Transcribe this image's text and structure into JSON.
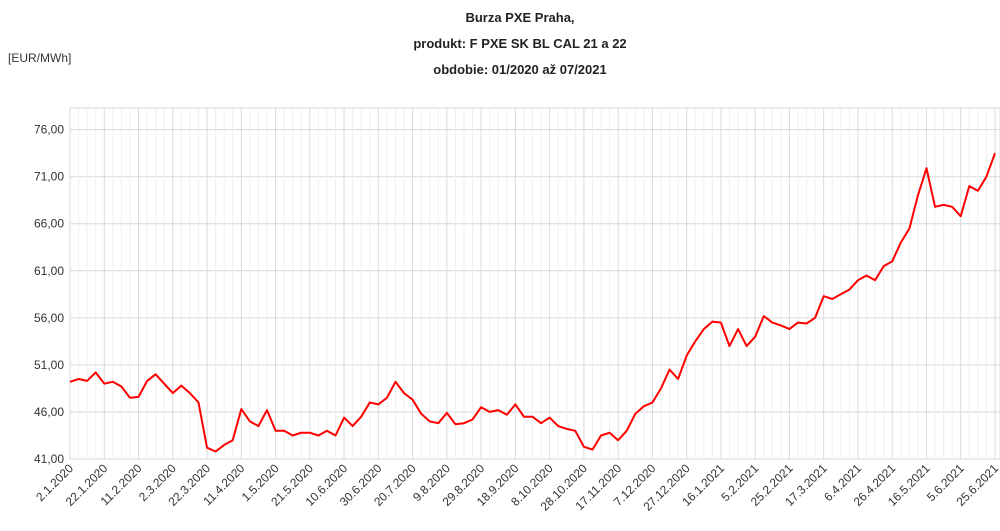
{
  "chart_data": {
    "type": "line",
    "title_lines": [
      "Burza PXE Praha,",
      "produkt: F PXE SK BL CAL 21 a 22",
      "obdobie: 01/2020 až 07/2021"
    ],
    "y_axis_label": "[EUR/MWh]",
    "categories": [
      "2.1.2020",
      null,
      null,
      null,
      "22.1.2020",
      null,
      null,
      null,
      "11.2.2020",
      null,
      null,
      null,
      "2.3.2020",
      null,
      null,
      null,
      "22.3.2020",
      null,
      null,
      null,
      "11.4.2020",
      null,
      null,
      null,
      "1.5.2020",
      null,
      null,
      null,
      "21.5.2020",
      null,
      null,
      null,
      "10.6.2020",
      null,
      null,
      null,
      "30.6.2020",
      null,
      null,
      null,
      "20.7.2020",
      null,
      null,
      null,
      "9.8.2020",
      null,
      null,
      null,
      "29.8.2020",
      null,
      null,
      null,
      "18.9.2020",
      null,
      null,
      null,
      "8.10.2020",
      null,
      null,
      null,
      "28.10.2020",
      null,
      null,
      null,
      "17.11.2020",
      null,
      null,
      null,
      "7.12.2020",
      null,
      null,
      null,
      "27.12.2020",
      null,
      null,
      null,
      "16.1.2021",
      null,
      null,
      null,
      "5.2.2021",
      null,
      null,
      null,
      "25.2.2021",
      null,
      null,
      null,
      "17.3.2021",
      null,
      null,
      null,
      "6.4.2021",
      null,
      null,
      null,
      "26.4.2021",
      null,
      null,
      null,
      "16.5.2021",
      null,
      null,
      null,
      "5.6.2021",
      null,
      null,
      null,
      "25.6.2021"
    ],
    "series": [
      {
        "name": "F PXE SK BL CAL 21 a 22",
        "color": "#ff0000",
        "values": [
          49.2,
          49.5,
          49.3,
          50.2,
          49.0,
          49.2,
          48.7,
          47.5,
          47.6,
          49.3,
          50.0,
          49.0,
          48.0,
          48.8,
          48.0,
          47.0,
          42.2,
          41.8,
          42.5,
          43.0,
          46.3,
          45.0,
          44.5,
          46.2,
          44.0,
          44.0,
          43.5,
          43.8,
          43.8,
          43.5,
          44.0,
          43.5,
          45.4,
          44.5,
          45.5,
          47.0,
          46.8,
          47.5,
          49.2,
          48.0,
          47.3,
          45.8,
          45.0,
          44.8,
          45.9,
          44.7,
          44.8,
          45.2,
          46.5,
          46.0,
          46.2,
          45.7,
          46.8,
          45.5,
          45.5,
          44.8,
          45.4,
          44.5,
          44.2,
          44.0,
          42.3,
          42.0,
          43.5,
          43.8,
          43.0,
          44.0,
          45.8,
          46.6,
          47.0,
          48.5,
          50.5,
          49.5,
          52.0,
          53.5,
          54.8,
          55.6,
          55.5,
          53.0,
          54.8,
          53.0,
          54.0,
          56.2,
          55.5,
          55.2,
          54.8,
          55.5,
          55.4,
          56.0,
          58.3,
          58.0,
          58.5,
          59.0,
          60.0,
          60.5,
          60.0,
          61.5,
          62.0,
          64.0,
          65.5,
          69.0,
          71.9,
          67.8,
          68.0,
          67.8,
          66.8,
          70.0,
          69.5,
          71.0,
          73.5
        ]
      }
    ],
    "ylim": [
      41,
      78.3
    ],
    "yticks": [
      {
        "value": 41,
        "label": "41,00"
      },
      {
        "value": 46,
        "label": "46,00"
      },
      {
        "value": 51,
        "label": "51,00"
      },
      {
        "value": 56,
        "label": "56,00"
      },
      {
        "value": 61,
        "label": "61,00"
      },
      {
        "value": 66,
        "label": "66,00"
      },
      {
        "value": 71,
        "label": "71,00"
      },
      {
        "value": 76,
        "label": "76,00"
      }
    ],
    "grid": true
  }
}
